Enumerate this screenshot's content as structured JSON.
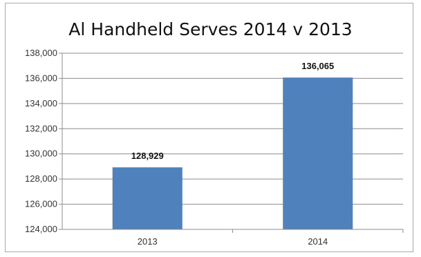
{
  "chart_data": {
    "type": "bar",
    "title": "Al Handheld Serves 2014 v 2013",
    "categories": [
      "2013",
      "2014"
    ],
    "values": [
      128929,
      136065
    ],
    "data_labels": [
      "128,929",
      "136,065"
    ],
    "y_ticks": [
      "124,000",
      "126,000",
      "128,000",
      "130,000",
      "132,000",
      "134,000",
      "136,000",
      "138,000"
    ],
    "y_tick_values": [
      124000,
      126000,
      128000,
      130000,
      132000,
      134000,
      136000,
      138000
    ],
    "xlabel": "",
    "ylabel": "",
    "ylim": [
      124000,
      138000
    ],
    "grid": true,
    "legend": "none",
    "bar_color": "#4f81bd"
  }
}
